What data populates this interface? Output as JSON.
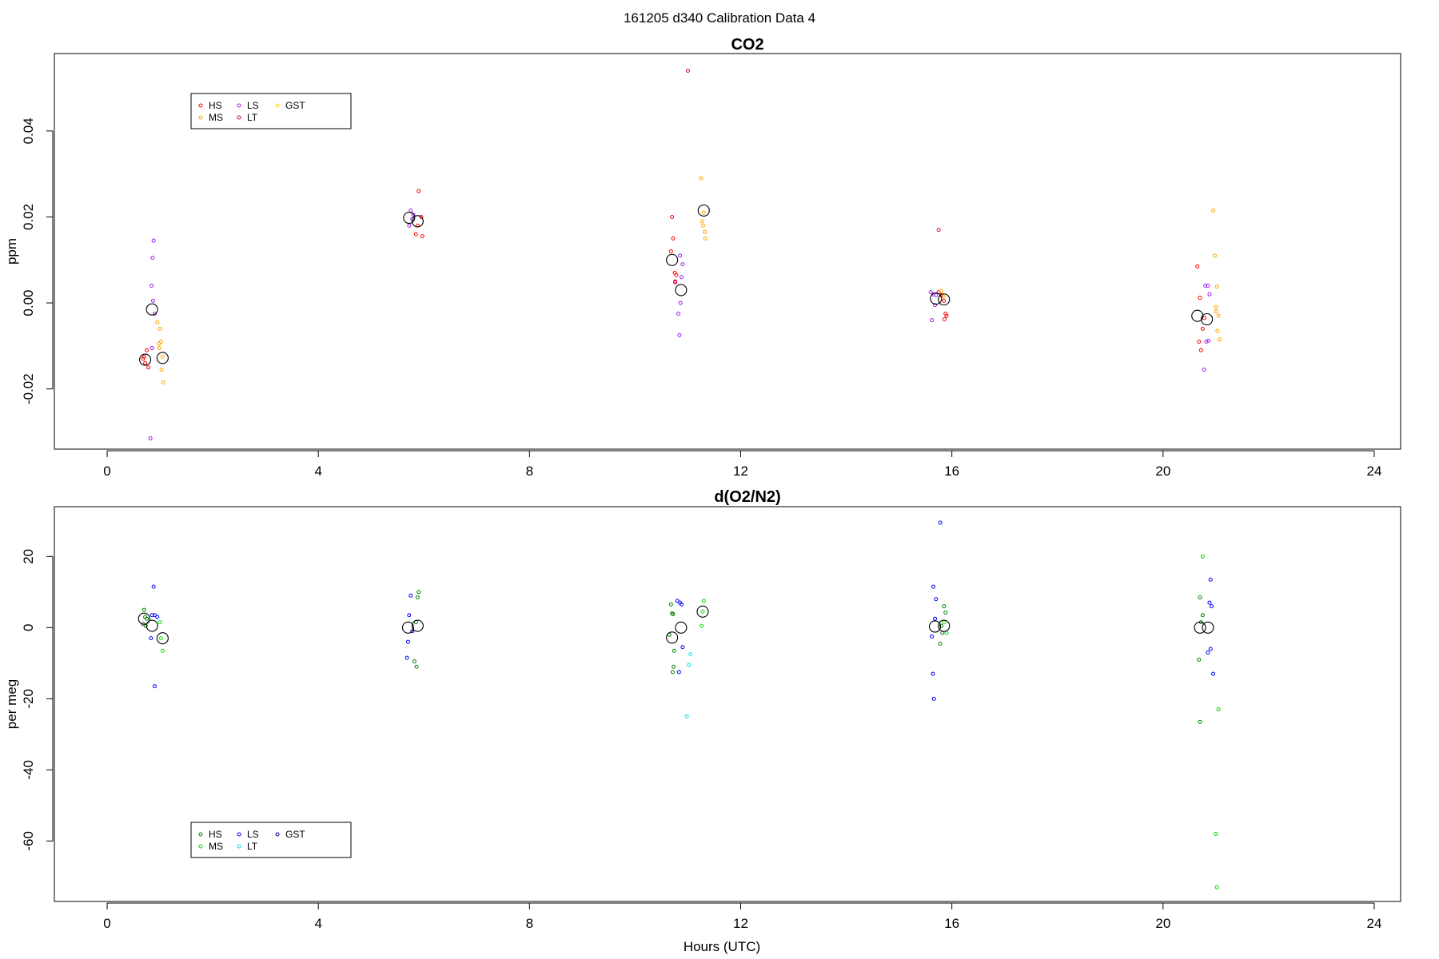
{
  "page_title": "161205   d340   Calibration Data 4",
  "xlabel": "Hours (UTC)",
  "chart_data": [
    {
      "type": "scatter",
      "title": "CO2",
      "ylabel": "ppm",
      "xlim": [
        -1,
        24.5
      ],
      "ylim": [
        -0.034,
        0.058
      ],
      "xticks": [
        0,
        4,
        8,
        12,
        16,
        20,
        24
      ],
      "yticks": [
        -0.02,
        0.0,
        0.02,
        0.04
      ],
      "ytick_labels": [
        "-0.02",
        "0.00",
        "0.02",
        "0.04"
      ],
      "legend": {
        "position": "top-left",
        "entries": [
          {
            "name": "HS",
            "color": "#ff0000"
          },
          {
            "name": "MS",
            "color": "#ffa500"
          },
          {
            "name": "LS",
            "color": "#a020f0"
          },
          {
            "name": "LT",
            "color": "#cc0066"
          },
          {
            "name": "GST",
            "color": "#ffd700"
          }
        ]
      },
      "series": [
        {
          "name": "HS",
          "color": "#ff0000",
          "points": [
            [
              0.68,
              -0.013
            ],
            [
              0.72,
              -0.014
            ],
            [
              0.75,
              -0.011
            ],
            [
              0.78,
              -0.015
            ],
            [
              0.7,
              -0.0125
            ],
            [
              5.9,
              0.026
            ],
            [
              5.95,
              0.02
            ],
            [
              5.85,
              0.016
            ],
            [
              5.97,
              0.0155
            ],
            [
              5.88,
              0.018
            ],
            [
              10.7,
              0.02
            ],
            [
              10.72,
              0.015
            ],
            [
              10.75,
              0.007
            ],
            [
              10.68,
              0.012
            ],
            [
              10.78,
              0.0065
            ],
            [
              10.76,
              0.005
            ],
            [
              15.75,
              0.0025
            ],
            [
              15.8,
              0.0018
            ],
            [
              15.85,
              0.0005
            ],
            [
              15.88,
              -0.0025
            ],
            [
              15.9,
              -0.003
            ],
            [
              15.86,
              -0.0038
            ],
            [
              20.65,
              0.0085
            ],
            [
              20.7,
              0.0012
            ],
            [
              20.75,
              -0.006
            ],
            [
              20.68,
              -0.009
            ],
            [
              20.72,
              -0.011
            ],
            [
              20.78,
              -0.0035
            ]
          ]
        },
        {
          "name": "MS",
          "color": "#ffa500",
          "points": [
            [
              0.95,
              -0.0045
            ],
            [
              1.0,
              -0.006
            ],
            [
              0.98,
              -0.0095
            ],
            [
              1.02,
              -0.009
            ],
            [
              1.05,
              -0.0125
            ],
            [
              1.03,
              -0.0155
            ],
            [
              1.06,
              -0.0185
            ],
            [
              0.99,
              -0.0105
            ],
            [
              11.25,
              0.029
            ],
            [
              11.3,
              0.021
            ],
            [
              11.27,
              0.019
            ],
            [
              11.32,
              0.0165
            ],
            [
              11.29,
              0.018
            ],
            [
              11.33,
              0.015
            ],
            [
              15.8,
              0.0028
            ],
            [
              15.84,
              0.0015
            ],
            [
              20.95,
              0.0215
            ],
            [
              20.98,
              0.011
            ],
            [
              21.02,
              0.0038
            ],
            [
              21.0,
              -0.001
            ],
            [
              21.05,
              -0.003
            ],
            [
              21.03,
              -0.0065
            ],
            [
              21.07,
              -0.0085
            ],
            [
              21.01,
              -0.002
            ]
          ]
        },
        {
          "name": "LS",
          "color": "#a020f0",
          "points": [
            [
              0.82,
              -0.0315
            ],
            [
              0.88,
              0.0145
            ],
            [
              0.86,
              0.0105
            ],
            [
              0.84,
              0.004
            ],
            [
              0.87,
              0.0005
            ],
            [
              0.85,
              -0.0105
            ],
            [
              0.9,
              -0.0025
            ],
            [
              5.75,
              0.0215
            ],
            [
              5.78,
              0.0195
            ],
            [
              5.72,
              0.018
            ],
            [
              5.8,
              0.0205
            ],
            [
              10.85,
              0.011
            ],
            [
              10.9,
              0.009
            ],
            [
              10.88,
              0.006
            ],
            [
              10.86,
              0.0
            ],
            [
              10.82,
              -0.0025
            ],
            [
              10.84,
              -0.0075
            ],
            [
              15.6,
              0.0025
            ],
            [
              15.65,
              0.002
            ],
            [
              15.7,
              0.0018
            ],
            [
              15.68,
              -0.0005
            ],
            [
              15.62,
              -0.004
            ],
            [
              20.8,
              0.004
            ],
            [
              20.85,
              0.004
            ],
            [
              20.88,
              0.002
            ],
            [
              20.82,
              -0.009
            ],
            [
              20.86,
              -0.0088
            ],
            [
              20.78,
              -0.0155
            ]
          ]
        },
        {
          "name": "LT",
          "color": "#cc0066",
          "points": [
            [
              11.0,
              0.054
            ],
            [
              15.75,
              0.017
            ],
            [
              10.76,
              0.0048
            ]
          ]
        },
        {
          "name": "GST",
          "color": "#ffd700",
          "points": []
        },
        {
          "name": "mean",
          "color": "#000000",
          "large": true,
          "points": [
            [
              0.72,
              -0.0132
            ],
            [
              0.85,
              -0.0015
            ],
            [
              1.05,
              -0.0128
            ],
            [
              5.72,
              0.0198
            ],
            [
              5.88,
              0.019
            ],
            [
              10.7,
              0.01
            ],
            [
              10.87,
              0.003
            ],
            [
              11.3,
              0.0215
            ],
            [
              15.7,
              0.001
            ],
            [
              15.85,
              0.0008
            ],
            [
              20.65,
              -0.003
            ],
            [
              20.83,
              -0.0038
            ]
          ]
        }
      ]
    },
    {
      "type": "scatter",
      "title": "d(O2/N2)",
      "ylabel": "per meg",
      "xlim": [
        -1,
        24.5
      ],
      "ylim": [
        -77,
        34
      ],
      "xticks": [
        0,
        4,
        8,
        12,
        16,
        20,
        24
      ],
      "yticks": [
        -60,
        -40,
        -20,
        0,
        20
      ],
      "ytick_labels": [
        "-60",
        "-40",
        "-20",
        "0",
        "20"
      ],
      "legend": {
        "position": "bottom-left",
        "entries": [
          {
            "name": "HS",
            "color": "#008000"
          },
          {
            "name": "MS",
            "color": "#00dd00"
          },
          {
            "name": "LS",
            "color": "#0000ff"
          },
          {
            "name": "LT",
            "color": "#00e5ee"
          },
          {
            "name": "GST",
            "color": "#000099"
          }
        ]
      },
      "series": [
        {
          "name": "HS",
          "color": "#008000",
          "points": [
            [
              0.7,
              5
            ],
            [
              0.72,
              3
            ],
            [
              0.68,
              1
            ],
            [
              0.75,
              2.5
            ],
            [
              0.73,
              0.5
            ],
            [
              5.9,
              10
            ],
            [
              5.88,
              8.5
            ],
            [
              5.85,
              1.5
            ],
            [
              5.82,
              -9.5
            ],
            [
              5.86,
              -11
            ],
            [
              10.68,
              6.5
            ],
            [
              10.7,
              4
            ],
            [
              10.72,
              3.8
            ],
            [
              10.74,
              -6.5
            ],
            [
              10.73,
              -11
            ],
            [
              10.71,
              -12.5
            ],
            [
              10.65,
              -2
            ],
            [
              15.85,
              6
            ],
            [
              15.88,
              4.2
            ],
            [
              15.8,
              0.5
            ],
            [
              15.82,
              -1.5
            ],
            [
              15.78,
              -4.5
            ],
            [
              20.7,
              8.5
            ],
            [
              20.75,
              3.5
            ],
            [
              20.72,
              1.5
            ],
            [
              20.68,
              -9
            ],
            [
              20.7,
              -26.5
            ]
          ]
        },
        {
          "name": "MS",
          "color": "#00dd00",
          "points": [
            [
              1.0,
              1.5
            ],
            [
              1.05,
              -6.5
            ],
            [
              1.02,
              -3
            ],
            [
              11.3,
              7.5
            ],
            [
              11.28,
              4.5
            ],
            [
              11.26,
              0.5
            ],
            [
              15.85,
              1.5
            ],
            [
              15.9,
              -1.5
            ],
            [
              20.75,
              20
            ],
            [
              21.05,
              -23
            ],
            [
              21.0,
              -58
            ],
            [
              21.02,
              -73
            ]
          ]
        },
        {
          "name": "LS",
          "color": "#0000ff",
          "points": [
            [
              0.88,
              11.5
            ],
            [
              0.9,
              3.5
            ],
            [
              0.85,
              3.5
            ],
            [
              0.95,
              3
            ],
            [
              0.83,
              -3
            ],
            [
              0.9,
              -16.5
            ],
            [
              5.75,
              9
            ],
            [
              5.72,
              3.5
            ],
            [
              5.7,
              -4
            ],
            [
              5.68,
              -8.5
            ],
            [
              5.78,
              -1
            ],
            [
              10.8,
              7.5
            ],
            [
              10.85,
              7
            ],
            [
              10.88,
              6.5
            ],
            [
              10.9,
              -5.5
            ],
            [
              10.83,
              -12.5
            ],
            [
              15.65,
              11.5
            ],
            [
              15.7,
              8
            ],
            [
              15.68,
              2.5
            ],
            [
              15.62,
              -2.5
            ],
            [
              15.64,
              -13
            ],
            [
              15.66,
              -20
            ],
            [
              15.78,
              29.5
            ],
            [
              20.9,
              13.5
            ],
            [
              20.88,
              7
            ],
            [
              20.92,
              6
            ],
            [
              20.85,
              -7
            ],
            [
              20.9,
              -6
            ],
            [
              20.95,
              -13
            ]
          ]
        },
        {
          "name": "LT",
          "color": "#00e5ee",
          "points": [
            [
              11.05,
              -7.5
            ],
            [
              11.02,
              -10.5
            ],
            [
              10.98,
              -25
            ]
          ]
        },
        {
          "name": "GST",
          "color": "#000099",
          "points": []
        },
        {
          "name": "mean",
          "color": "#000000",
          "large": true,
          "points": [
            [
              0.7,
              2.5
            ],
            [
              0.85,
              0.5
            ],
            [
              1.05,
              -3
            ],
            [
              5.7,
              0
            ],
            [
              5.88,
              0.5
            ],
            [
              10.7,
              -2.8
            ],
            [
              10.87,
              0
            ],
            [
              11.28,
              4.5
            ],
            [
              15.68,
              0.3
            ],
            [
              15.85,
              0.5
            ],
            [
              20.7,
              0
            ],
            [
              20.85,
              0
            ]
          ]
        }
      ]
    }
  ]
}
